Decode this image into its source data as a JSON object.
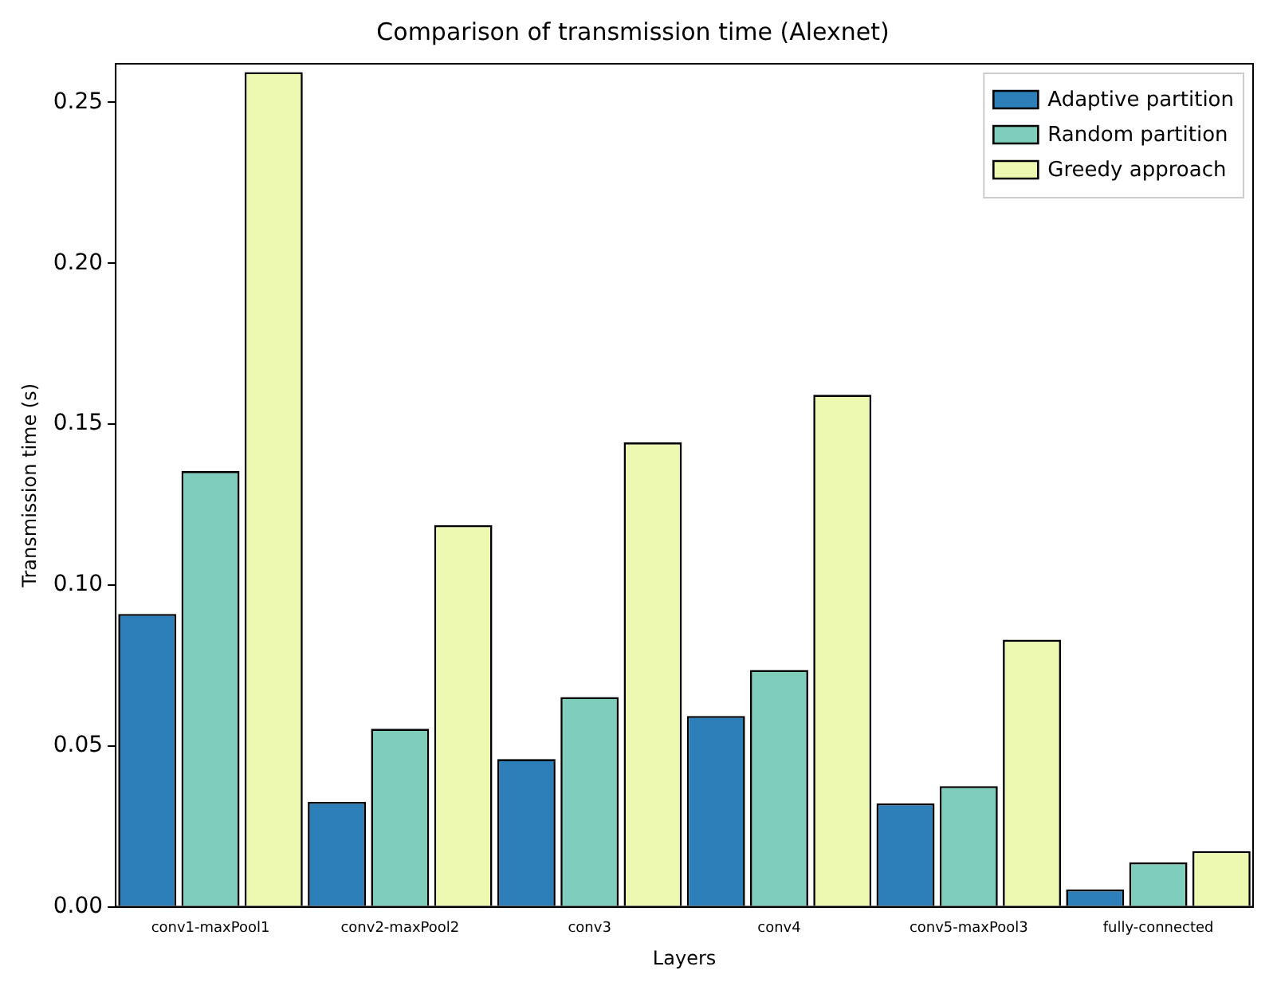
{
  "chart_data": {
    "type": "bar",
    "title": "Comparison of transmission time (Alexnet)",
    "xlabel": "Layers",
    "ylabel": "Transmission time (s)",
    "categories": [
      "conv1-maxPool1",
      "conv2-maxPool2",
      "conv3",
      "conv4",
      "conv5-maxPool3",
      "fully-connected"
    ],
    "series": [
      {
        "name": "Adaptive partition",
        "color": "#2c7fb8",
        "values": [
          0.091,
          0.0326,
          0.0459,
          0.0593,
          0.0321,
          0.0054
        ]
      },
      {
        "name": "Random partition",
        "color": "#7fcdbb",
        "values": [
          0.1354,
          0.0553,
          0.0652,
          0.0736,
          0.0375,
          0.0138
        ]
      },
      {
        "name": "Greedy approach",
        "color": "#edf8b1",
        "values": [
          0.2594,
          0.1186,
          0.1443,
          0.1591,
          0.083,
          0.0173
        ]
      }
    ],
    "ylim": [
      0,
      0.262
    ],
    "yticks": [
      {
        "value": 0,
        "label": "0.00"
      },
      {
        "value": 0.05,
        "label": "0.05"
      },
      {
        "value": 0.1,
        "label": "0.10"
      },
      {
        "value": 0.15,
        "label": "0.15"
      },
      {
        "value": 0.2,
        "label": "0.20"
      },
      {
        "value": 0.25,
        "label": "0.25"
      }
    ],
    "grid": false,
    "legend": "top right"
  }
}
